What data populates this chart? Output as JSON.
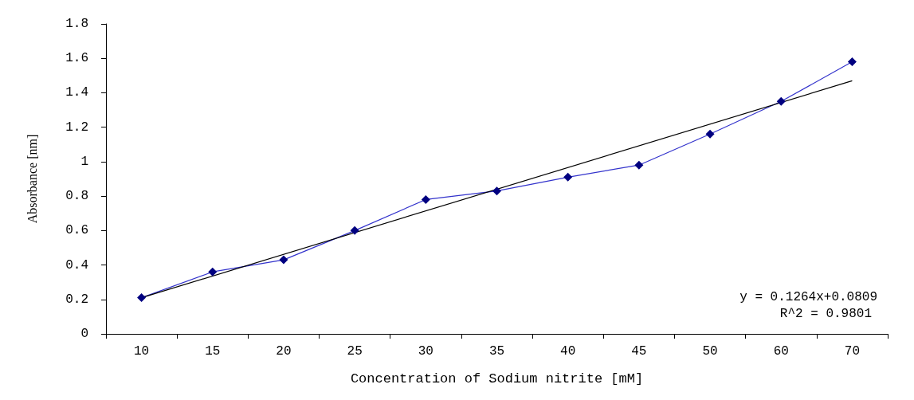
{
  "chart_data": {
    "type": "line",
    "xlabel": "Concentration of Sodium nitrite [mM]",
    "ylabel": "Absorbance [nm]",
    "categories": [
      "10",
      "15",
      "20",
      "25",
      "30",
      "35",
      "40",
      "45",
      "50",
      "60",
      "70"
    ],
    "series": [
      {
        "color": "#000080",
        "marker": "diamond",
        "values": [
          0.21,
          0.36,
          0.43,
          0.6,
          0.78,
          0.83,
          0.91,
          0.98,
          1.16,
          1.35,
          1.58
        ]
      },
      {
        "color": "#000000",
        "marker": "none",
        "x": [
          "10",
          "70"
        ],
        "values": [
          0.21,
          1.47
        ]
      }
    ],
    "ylim": [
      0,
      1.8
    ],
    "yticks": [
      0,
      0.2,
      0.4,
      0.6,
      0.8,
      1,
      1.2,
      1.4,
      1.6,
      1.8
    ],
    "grid": false,
    "annotations": [
      "y = 0.1264x+0.0809",
      "R^2 = 0.9801"
    ]
  }
}
